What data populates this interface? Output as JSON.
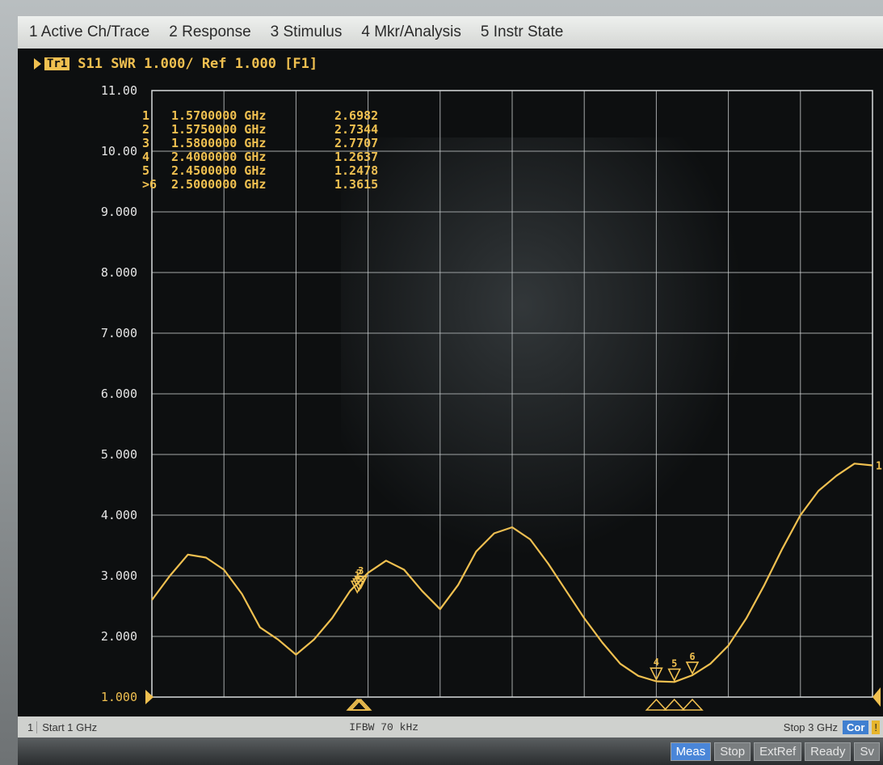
{
  "menu": {
    "items": [
      {
        "label": "1 Active Ch/Trace"
      },
      {
        "label": "2 Response"
      },
      {
        "label": "3 Stimulus"
      },
      {
        "label": "4 Mkr/Analysis"
      },
      {
        "label": "5 Instr State"
      }
    ]
  },
  "trace": {
    "tag": "Tr1",
    "header": "S11  SWR 1.000/ Ref 1.000 [F1]"
  },
  "markers": [
    {
      "label": "1",
      "freq": "1.5700000 GHz",
      "value": "2.6982"
    },
    {
      "label": "2",
      "freq": "1.5750000 GHz",
      "value": "2.7344"
    },
    {
      "label": "3",
      "freq": "1.5800000 GHz",
      "value": "2.7707"
    },
    {
      "label": "4",
      "freq": "2.4000000 GHz",
      "value": "1.2637"
    },
    {
      "label": "5",
      "freq": "2.4500000 GHz",
      "value": "1.2478"
    },
    {
      "label": ">6",
      "freq": "2.5000000 GHz",
      "value": "1.3615"
    }
  ],
  "status": {
    "channel": "1",
    "start": "Start 1 GHz",
    "ifbw": "IFBW 70 kHz",
    "stop": "Stop 3 GHz",
    "cor": "Cor",
    "warn": "!"
  },
  "infobar": {
    "chips": [
      {
        "label": "Meas",
        "active": true
      },
      {
        "label": "Stop",
        "active": false
      },
      {
        "label": "ExtRef",
        "active": false
      },
      {
        "label": "Ready",
        "active": false
      },
      {
        "label": "Sv",
        "active": false
      }
    ]
  },
  "colors": {
    "trace": "#f0c050",
    "grid": "#d8dcdc",
    "text": "#f0c050",
    "axis_text": "#e6e6e6"
  },
  "chart_data": {
    "type": "line",
    "xlim": [
      1,
      3
    ],
    "ylim": [
      1,
      11
    ],
    "yticks": [
      "11.00",
      "10.00",
      "9.000",
      "8.000",
      "7.000",
      "6.000",
      "5.000",
      "4.000",
      "3.000",
      "2.000",
      "1.000"
    ],
    "grid": true,
    "series": [
      {
        "x": [
          1.0,
          1.05,
          1.1,
          1.15,
          1.2,
          1.25,
          1.3,
          1.35,
          1.4,
          1.45,
          1.5,
          1.55,
          1.6,
          1.65,
          1.7,
          1.75,
          1.8,
          1.85,
          1.9,
          1.95,
          2.0,
          2.05,
          2.1,
          2.15,
          2.2,
          2.25,
          2.3,
          2.35,
          2.4,
          2.45,
          2.5,
          2.55,
          2.6,
          2.65,
          2.7,
          2.75,
          2.8,
          2.85,
          2.9,
          2.95,
          3.0
        ],
        "values": [
          2.6,
          3.0,
          3.35,
          3.3,
          3.1,
          2.7,
          2.15,
          1.95,
          1.7,
          1.95,
          2.3,
          2.75,
          3.05,
          3.25,
          3.1,
          2.75,
          2.45,
          2.85,
          3.4,
          3.7,
          3.8,
          3.6,
          3.2,
          2.75,
          2.3,
          1.9,
          1.55,
          1.35,
          1.26,
          1.25,
          1.36,
          1.55,
          1.85,
          2.3,
          2.85,
          3.45,
          4.0,
          4.4,
          4.65,
          4.85,
          4.82
        ]
      }
    ],
    "marker_points": [
      {
        "label": "1",
        "x": 1.57,
        "y": 2.6982
      },
      {
        "label": "2",
        "x": 1.575,
        "y": 2.7344
      },
      {
        "label": "3",
        "x": 1.58,
        "y": 2.7707
      },
      {
        "label": "4",
        "x": 2.4,
        "y": 1.2637
      },
      {
        "label": "5",
        "x": 2.45,
        "y": 1.2478
      },
      {
        "label": "6",
        "x": 2.5,
        "y": 1.3615
      }
    ]
  }
}
